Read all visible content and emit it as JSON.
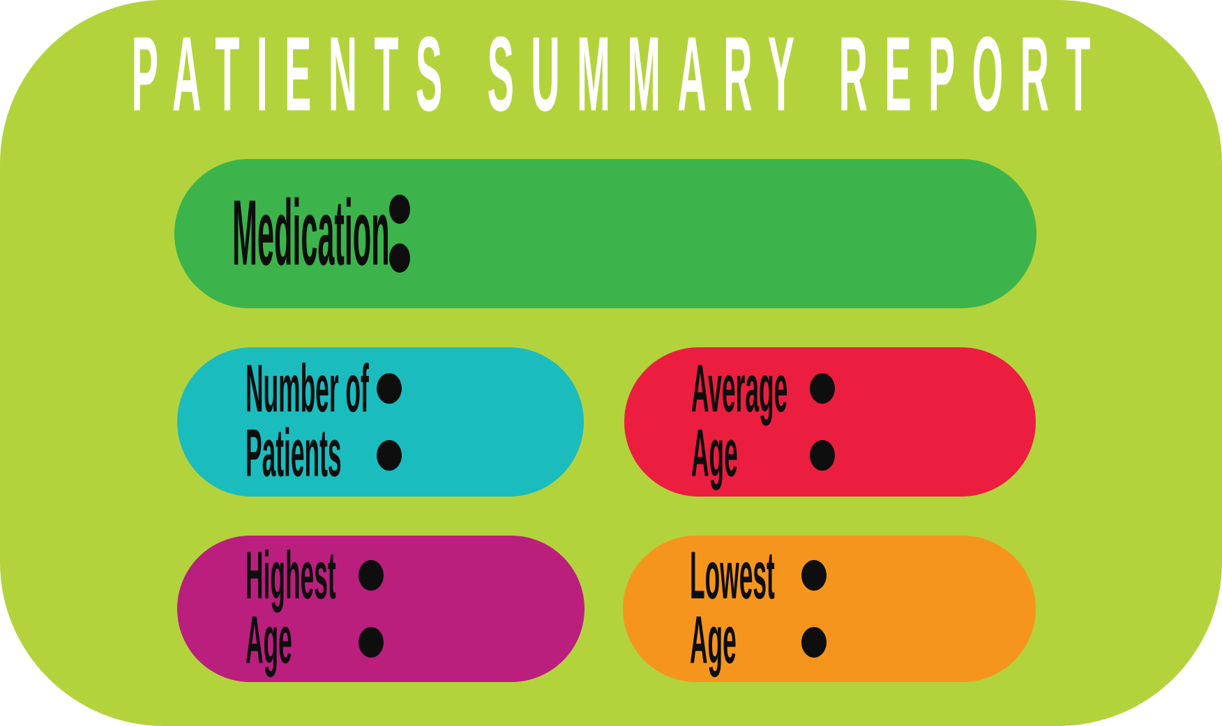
{
  "title": "PATIENTS SUMMARY REPORT",
  "palette": {
    "page_background": "#ffffff",
    "panel_background": "#b3d33c",
    "title_text": "#ffffff",
    "label_text": "#0e0e0e",
    "medication_pill": "#3cb44b",
    "number_of_patients_pill": "#1bbcbe",
    "average_age_pill": "#ec1e40",
    "highest_age_pill": "#ba1f7d",
    "lowest_age_pill": "#f6951e"
  },
  "fields": {
    "medication": {
      "label": "Medication",
      "colon": ":",
      "value": ""
    },
    "number_of_patients": {
      "label_lines": [
        "Number of",
        "Patients"
      ],
      "colon": ":",
      "value": ""
    },
    "average_age": {
      "label_lines": [
        "Average",
        "Age"
      ],
      "colon": ":",
      "value": ""
    },
    "highest_age": {
      "label_lines": [
        "Highest",
        "Age"
      ],
      "colon": ":",
      "value": ""
    },
    "lowest_age": {
      "label_lines": [
        "Lowest",
        "Age"
      ],
      "colon": ":",
      "value": ""
    }
  }
}
